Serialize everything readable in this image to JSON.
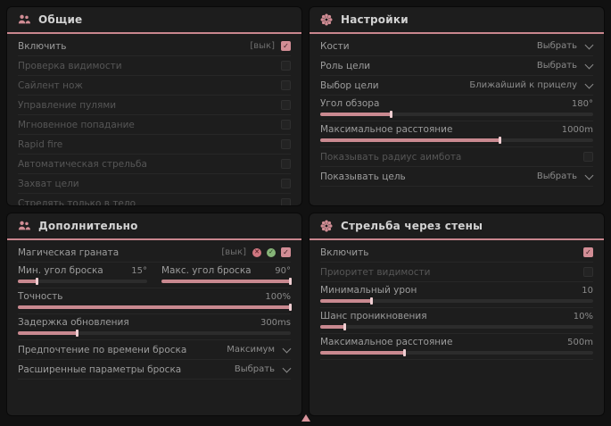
{
  "theme": {
    "accent": "#d18d95",
    "panel_bg": "#1d1d1d",
    "page_bg": "#111111",
    "fill": "#c98990",
    "handle": "#efcdd1"
  },
  "icons": {
    "check_glyph": "✓",
    "deny_glyph": "✕",
    "allow_glyph": "✓",
    "panel_icons": [
      "users-icon",
      "gear-icon",
      "users-icon",
      "gear-icon"
    ]
  },
  "panels": [
    {
      "id": "general",
      "title": "Общие",
      "icon": "users-icon",
      "rows": [
        {
          "type": "toggle",
          "label": "Включить",
          "hotkey": "[вык]",
          "checked": true,
          "dimmed": false
        },
        {
          "type": "toggle",
          "label": "Проверка видимости",
          "checked": false,
          "dimmed": true
        },
        {
          "type": "toggle",
          "label": "Сайлент нож",
          "checked": false,
          "dimmed": true
        },
        {
          "type": "toggle",
          "label": "Управление пулями",
          "checked": false,
          "dimmed": true
        },
        {
          "type": "toggle",
          "label": "Мгновенное попадание",
          "checked": false,
          "dimmed": true
        },
        {
          "type": "toggle",
          "label": "Rapid fire",
          "checked": false,
          "dimmed": true
        },
        {
          "type": "toggle",
          "label": "Автоматическая стрельба",
          "checked": false,
          "dimmed": true
        },
        {
          "type": "toggle",
          "label": "Захват цели",
          "checked": false,
          "dimmed": true
        },
        {
          "type": "toggle",
          "label": "Стрелять только в тело",
          "checked": false,
          "dimmed": true
        }
      ]
    },
    {
      "id": "settings",
      "title": "Настройки",
      "icon": "gear-icon",
      "rows": [
        {
          "type": "dropdown",
          "label": "Кости",
          "value": "Выбрать"
        },
        {
          "type": "dropdown",
          "label": "Роль цели",
          "value": "Выбрать"
        },
        {
          "type": "dropdown",
          "label": "Выбор цели",
          "value": "Ближайший к прицелу"
        },
        {
          "type": "slider",
          "label": "Угол обзора",
          "value": "180°",
          "fill": 26
        },
        {
          "type": "slider",
          "label": "Максимальное расстояние",
          "value": "1000m",
          "fill": 66
        },
        {
          "type": "toggle",
          "label": "Показывать радиус аимбота",
          "checked": false,
          "dimmed": true
        },
        {
          "type": "dropdown",
          "label": "Показывать цель",
          "value": "Выбрать"
        }
      ]
    },
    {
      "id": "additional",
      "title": "Дополнительно",
      "icon": "users-icon",
      "rows": [
        {
          "type": "toggle",
          "label": "Магическая граната",
          "hotkey": "[вык]",
          "extras": true,
          "checked": true,
          "dimmed": false
        },
        {
          "type": "slider-pair",
          "sliders": [
            {
              "label": "Мин. угол броска",
              "value": "15°",
              "fill": 15
            },
            {
              "label": "Макс. угол броска",
              "value": "90°",
              "fill": 100
            }
          ]
        },
        {
          "type": "slider",
          "label": "Точность",
          "value": "100%",
          "fill": 100
        },
        {
          "type": "slider",
          "label": "Задержка обновления",
          "value": "300ms",
          "fill": 22
        },
        {
          "type": "dropdown",
          "label": "Предпочтение по времени броска",
          "value": "Максимум"
        },
        {
          "type": "dropdown",
          "label": "Расширенные параметры броска",
          "value": "Выбрать"
        }
      ]
    },
    {
      "id": "wallbang",
      "title": "Стрельба через стены",
      "icon": "gear-icon",
      "rows": [
        {
          "type": "toggle",
          "label": "Включить",
          "checked": true,
          "dimmed": false
        },
        {
          "type": "toggle",
          "label": "Приоритет видимости",
          "checked": false,
          "dimmed": true
        },
        {
          "type": "slider",
          "label": "Минимальный урон",
          "value": "10",
          "fill": 19
        },
        {
          "type": "slider",
          "label": "Шанс проникновения",
          "value": "10%",
          "fill": 9
        },
        {
          "type": "slider",
          "label": "Максимальное расстояние",
          "value": "500m",
          "fill": 31
        }
      ]
    }
  ],
  "footer": {
    "indicator": "up-triangle"
  }
}
